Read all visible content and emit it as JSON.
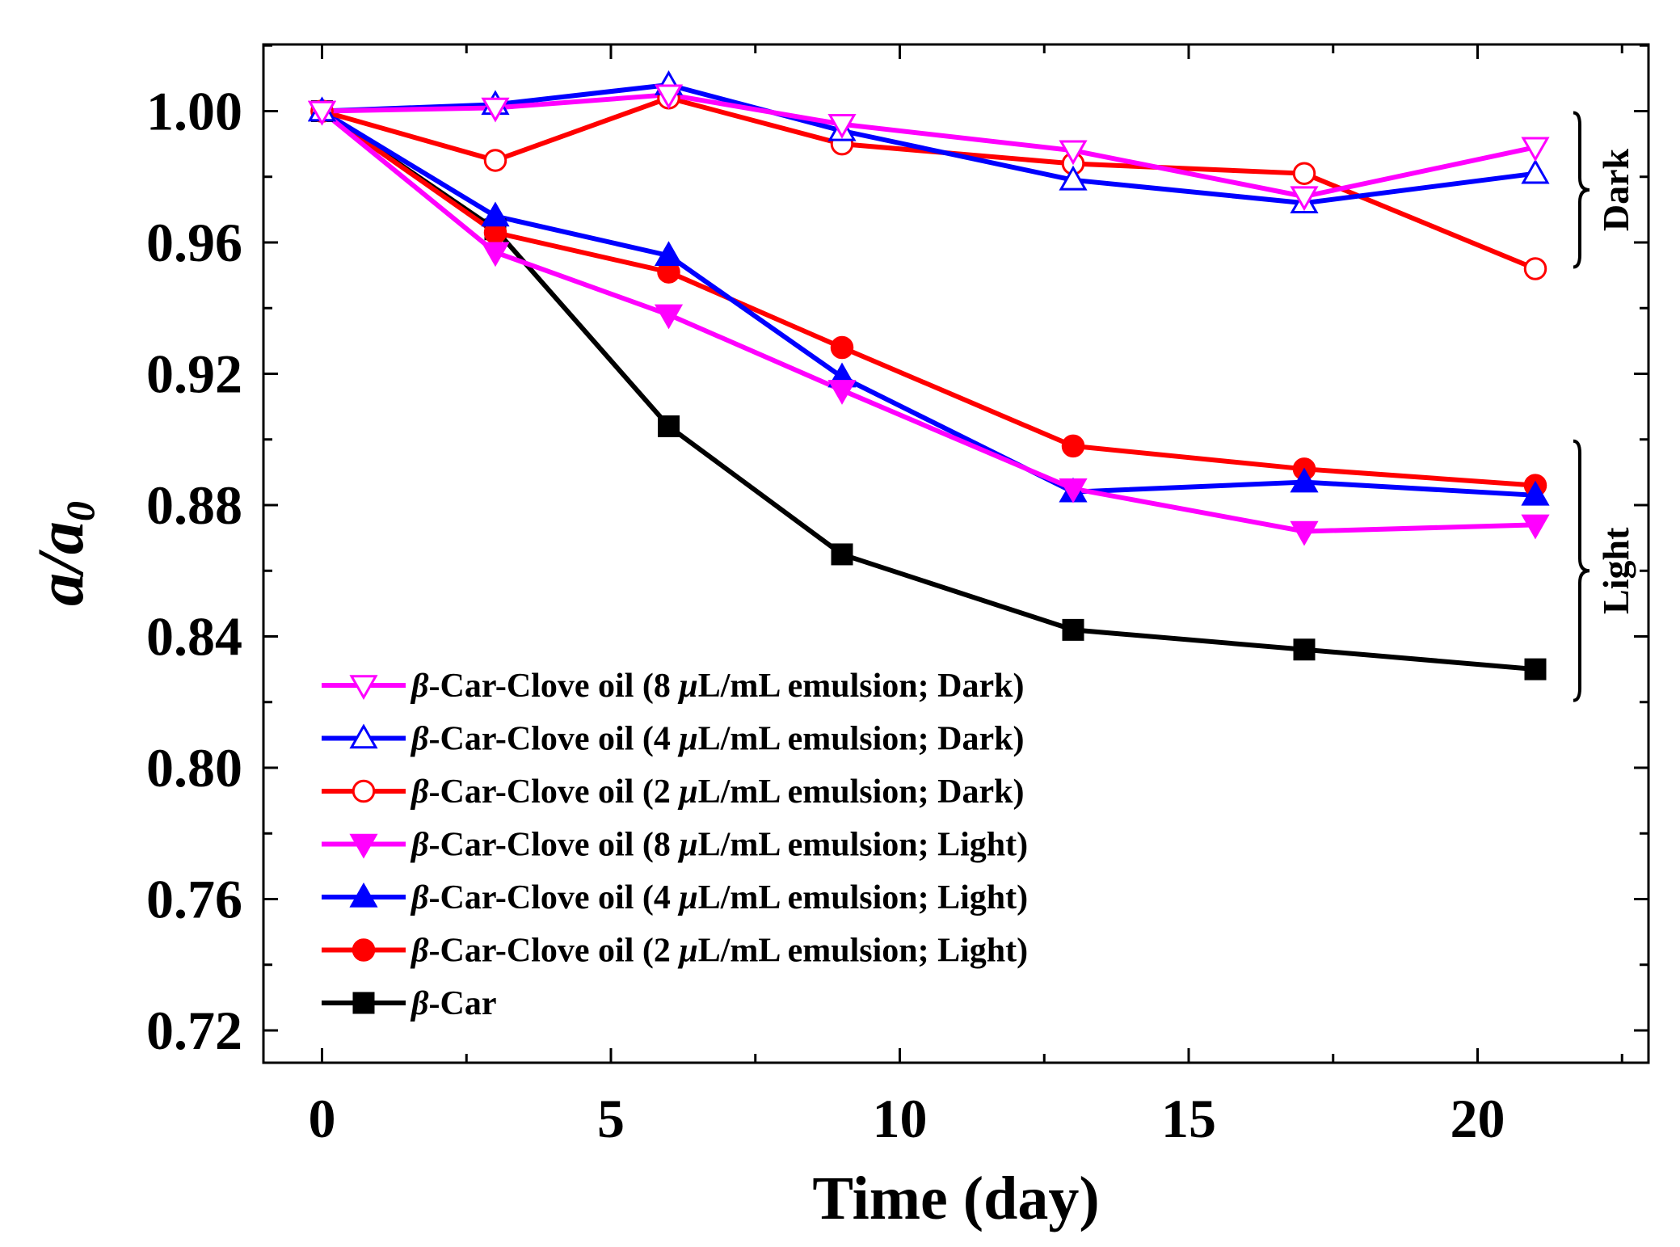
{
  "chart_data": {
    "type": "line",
    "title": "",
    "xlabel": "Time (day)",
    "ylabel": {
      "main": "a/a",
      "subscript": "0"
    },
    "xlim": [
      -1,
      22.5
    ],
    "ylim": [
      0.71,
      1.02
    ],
    "xticks": [
      0,
      5,
      10,
      15,
      20
    ],
    "yticks": [
      0.72,
      0.76,
      0.8,
      0.84,
      0.88,
      0.92,
      0.96,
      1.0
    ],
    "xtick_labels": [
      "0",
      "5",
      "10",
      "15",
      "20"
    ],
    "ytick_labels": [
      "0.72",
      "0.76",
      "0.80",
      "0.84",
      "0.88",
      "0.92",
      "0.96",
      "1.00"
    ],
    "x": [
      0,
      3,
      6,
      9,
      13,
      17,
      21
    ],
    "series": [
      {
        "name": "8 µL/mL emulsion; Dark",
        "label_prefix": "β",
        "label_rest": "-Car-Clove oil (8 ",
        "label_mu": "μ",
        "label_tail": "L/mL emulsion; Dark)",
        "color": "#ff00ff",
        "marker": "triangle-down",
        "filled": false,
        "values": [
          1.0,
          1.001,
          1.005,
          0.996,
          0.988,
          0.974,
          0.989
        ]
      },
      {
        "name": "4 µL/mL emulsion; Dark",
        "label_prefix": "β",
        "label_rest": "-Car-Clove oil (4 ",
        "label_mu": "μ",
        "label_tail": "L/mL emulsion; Dark)",
        "color": "#0000ff",
        "marker": "triangle-up",
        "filled": false,
        "values": [
          1.0,
          1.002,
          1.008,
          0.994,
          0.979,
          0.972,
          0.981
        ]
      },
      {
        "name": "2 µL/mL emulsion; Dark",
        "label_prefix": "β",
        "label_rest": "-Car-Clove oil (2 ",
        "label_mu": "μ",
        "label_tail": "L/mL emulsion; Dark)",
        "color": "#ff0000",
        "marker": "circle",
        "filled": false,
        "values": [
          1.0,
          0.985,
          1.004,
          0.99,
          0.984,
          0.981,
          0.952
        ]
      },
      {
        "name": "8 µL/mL emulsion; Light",
        "label_prefix": "β",
        "label_rest": "-Car-Clove oil (8 ",
        "label_mu": "μ",
        "label_tail": "L/mL emulsion; Light)",
        "color": "#ff00ff",
        "marker": "triangle-down",
        "filled": true,
        "values": [
          1.0,
          0.957,
          0.938,
          0.915,
          0.885,
          0.872,
          0.874
        ]
      },
      {
        "name": "4 µL/mL emulsion; Light",
        "label_prefix": "β",
        "label_rest": "-Car-Clove oil (4 ",
        "label_mu": "μ",
        "label_tail": "L/mL emulsion; Light)",
        "color": "#0000ff",
        "marker": "triangle-up",
        "filled": true,
        "values": [
          1.0,
          0.968,
          0.956,
          0.919,
          0.884,
          0.887,
          0.883
        ]
      },
      {
        "name": "2 µL/mL emulsion; Light",
        "label_prefix": "β",
        "label_rest": "-Car-Clove oil (2 ",
        "label_mu": "μ",
        "label_tail": "L/mL emulsion; Light)",
        "color": "#ff0000",
        "marker": "circle",
        "filled": true,
        "values": [
          1.0,
          0.963,
          0.951,
          0.928,
          0.898,
          0.891,
          0.886
        ]
      },
      {
        "name": "β-Car",
        "label_prefix": "β",
        "label_rest": "-Car",
        "label_mu": "",
        "label_tail": "",
        "color": "#000000",
        "marker": "square",
        "filled": true,
        "values": [
          1.0,
          0.964,
          0.904,
          0.865,
          0.842,
          0.836,
          0.83
        ]
      }
    ],
    "annotations": [
      {
        "text": "Dark",
        "range": [
          0.952,
          1.0
        ]
      },
      {
        "text": "Light",
        "range": [
          0.82,
          0.9
        ]
      }
    ],
    "legend_position": "lower-left",
    "grid": false
  }
}
